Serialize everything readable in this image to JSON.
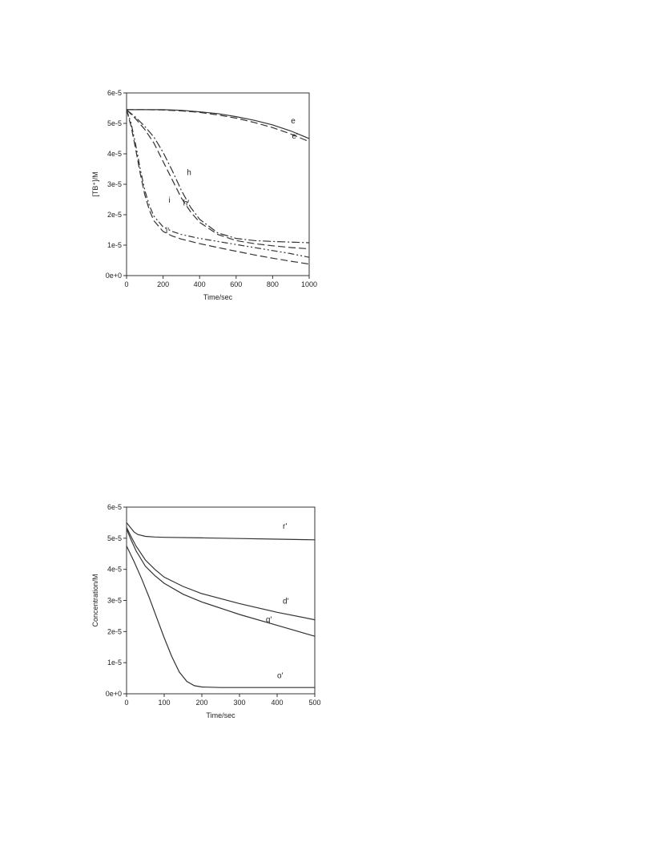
{
  "chart_data": [
    {
      "type": "line",
      "title": "",
      "xlabel": "Time/sec",
      "ylabel": "[TB⁺]/M",
      "xlim": [
        0,
        1000
      ],
      "ylim": [
        0,
        6e-05
      ],
      "xticks": [
        0,
        200,
        400,
        600,
        800,
        1000
      ],
      "yticks": [
        0,
        1e-05,
        2e-05,
        3e-05,
        4e-05,
        5e-05,
        6e-05
      ],
      "xtick_labels": [
        "0",
        "200",
        "400",
        "600",
        "800",
        "1000"
      ],
      "ytick_labels": [
        "0e+0",
        "1e-5",
        "2e-5",
        "3e-5",
        "4e-5",
        "5e-5",
        "6e-5"
      ],
      "grid": false,
      "series": [
        {
          "name": "e",
          "dash": "solid",
          "x": [
            0,
            100,
            200,
            300,
            400,
            500,
            600,
            700,
            800,
            900,
            1000
          ],
          "y": [
            5.45e-05,
            5.45e-05,
            5.45e-05,
            5.43e-05,
            5.38e-05,
            5.32e-05,
            5.22e-05,
            5.1e-05,
            4.95e-05,
            4.75e-05,
            4.5e-05
          ]
        },
        {
          "name": "e'",
          "dash": "long-dash",
          "x": [
            0,
            100,
            200,
            300,
            400,
            500,
            600,
            700,
            800,
            900,
            1000
          ],
          "y": [
            5.45e-05,
            5.45e-05,
            5.44e-05,
            5.41e-05,
            5.36e-05,
            5.28e-05,
            5.17e-05,
            5.03e-05,
            4.86e-05,
            4.65e-05,
            4.4e-05
          ]
        },
        {
          "name": "h",
          "dash": "dash-dot",
          "x": [
            0,
            50,
            100,
            150,
            200,
            250,
            300,
            350,
            400,
            500,
            600,
            700,
            800,
            900,
            1000
          ],
          "y": [
            5.45e-05,
            5.2e-05,
            4.9e-05,
            4.55e-05,
            4.05e-05,
            3.45e-05,
            2.8e-05,
            2.25e-05,
            1.85e-05,
            1.4e-05,
            1.22e-05,
            1.15e-05,
            1.12e-05,
            1.1e-05,
            1.08e-05
          ]
        },
        {
          "name": "h'",
          "dash": "long-dash",
          "x": [
            0,
            50,
            100,
            150,
            200,
            250,
            300,
            350,
            400,
            500,
            600,
            700,
            800,
            900,
            1000
          ],
          "y": [
            5.45e-05,
            5.15e-05,
            4.8e-05,
            4.35e-05,
            3.75e-05,
            3.15e-05,
            2.55e-05,
            2.1e-05,
            1.75e-05,
            1.35e-05,
            1.15e-05,
            1.05e-05,
            9.8e-06,
            9.2e-06,
            8.8e-06
          ]
        },
        {
          "name": "i",
          "dash": "dash-dot-dot",
          "x": [
            0,
            25,
            50,
            75,
            100,
            125,
            150,
            200,
            250,
            300,
            400,
            500,
            600,
            700,
            800,
            900,
            1000
          ],
          "y": [
            5.45e-05,
            5e-05,
            4.3e-05,
            3.5e-05,
            2.8e-05,
            2.3e-05,
            1.95e-05,
            1.6e-05,
            1.45e-05,
            1.35e-05,
            1.22e-05,
            1.12e-05,
            1.02e-05,
            9.2e-06,
            8.2e-06,
            7.2e-06,
            6e-06
          ]
        },
        {
          "name": "i'",
          "dash": "long-dash",
          "x": [
            0,
            25,
            50,
            75,
            100,
            125,
            150,
            200,
            250,
            300,
            400,
            500,
            600,
            700,
            800,
            900,
            1000
          ],
          "y": [
            5.45e-05,
            4.9e-05,
            4.15e-05,
            3.35e-05,
            2.65e-05,
            2.15e-05,
            1.8e-05,
            1.45e-05,
            1.3e-05,
            1.2e-05,
            1.05e-05,
            9.2e-06,
            8e-06,
            6.8e-06,
            5.7e-06,
            4.7e-06,
            3.8e-06
          ]
        }
      ],
      "annotations": [
        {
          "text": "e",
          "x": 900,
          "y": 5e-05
        },
        {
          "text": "e'",
          "x": 905,
          "y": 4.5e-05
        },
        {
          "text": "h",
          "x": 330,
          "y": 3.3e-05
        },
        {
          "text": "h'",
          "x": 310,
          "y": 2.3e-05
        },
        {
          "text": "i",
          "x": 230,
          "y": 2.4e-05
        },
        {
          "text": "i'",
          "x": 215,
          "y": 1.4e-05
        }
      ]
    },
    {
      "type": "line",
      "title": "",
      "xlabel": "Time/sec",
      "ylabel": "Concentration/M",
      "xlim": [
        0,
        500
      ],
      "ylim": [
        0,
        6e-05
      ],
      "xticks": [
        0,
        100,
        200,
        300,
        400,
        500
      ],
      "yticks": [
        0,
        1e-05,
        2e-05,
        3e-05,
        4e-05,
        5e-05,
        6e-05
      ],
      "xtick_labels": [
        "0",
        "100",
        "200",
        "300",
        "400",
        "500"
      ],
      "ytick_labels": [
        "0e+0",
        "1e-5",
        "2e-5",
        "3e-5",
        "4e-5",
        "5e-5",
        "6e-5"
      ],
      "grid": false,
      "series": [
        {
          "name": "r'",
          "dash": "solid",
          "x": [
            0,
            10,
            20,
            30,
            50,
            75,
            100,
            200,
            300,
            400,
            500
          ],
          "y": [
            5.5e-05,
            5.35e-05,
            5.2e-05,
            5.12e-05,
            5.06e-05,
            5.04e-05,
            5.03e-05,
            5.01e-05,
            4.99e-05,
            4.97e-05,
            4.95e-05
          ]
        },
        {
          "name": "d'",
          "dash": "solid",
          "x": [
            0,
            10,
            25,
            50,
            75,
            100,
            150,
            200,
            300,
            400,
            500
          ],
          "y": [
            5.35e-05,
            5.1e-05,
            4.75e-05,
            4.3e-05,
            4e-05,
            3.75e-05,
            3.45e-05,
            3.22e-05,
            2.9e-05,
            2.62e-05,
            2.38e-05
          ]
        },
        {
          "name": "q'",
          "dash": "solid",
          "x": [
            0,
            10,
            25,
            50,
            75,
            100,
            150,
            200,
            300,
            400,
            500
          ],
          "y": [
            5.3e-05,
            5e-05,
            4.6e-05,
            4.1e-05,
            3.8e-05,
            3.55e-05,
            3.2e-05,
            2.95e-05,
            2.55e-05,
            2.2e-05,
            1.85e-05
          ]
        },
        {
          "name": "o'",
          "dash": "solid",
          "x": [
            0,
            20,
            40,
            60,
            80,
            100,
            120,
            140,
            160,
            180,
            200,
            250,
            300,
            400,
            500
          ],
          "y": [
            4.75e-05,
            4.25e-05,
            3.7e-05,
            3.1e-05,
            2.45e-05,
            1.8e-05,
            1.2e-05,
            7e-06,
            4e-06,
            2.6e-06,
            2.2e-06,
            2e-06,
            2e-06,
            2e-06,
            2e-06
          ]
        }
      ],
      "annotations": [
        {
          "text": "r'",
          "x": 415,
          "y": 5.3e-05
        },
        {
          "text": "d'",
          "x": 415,
          "y": 2.9e-05
        },
        {
          "text": "q'",
          "x": 370,
          "y": 2.3e-05
        },
        {
          "text": "o'",
          "x": 400,
          "y": 5e-06
        }
      ]
    }
  ]
}
